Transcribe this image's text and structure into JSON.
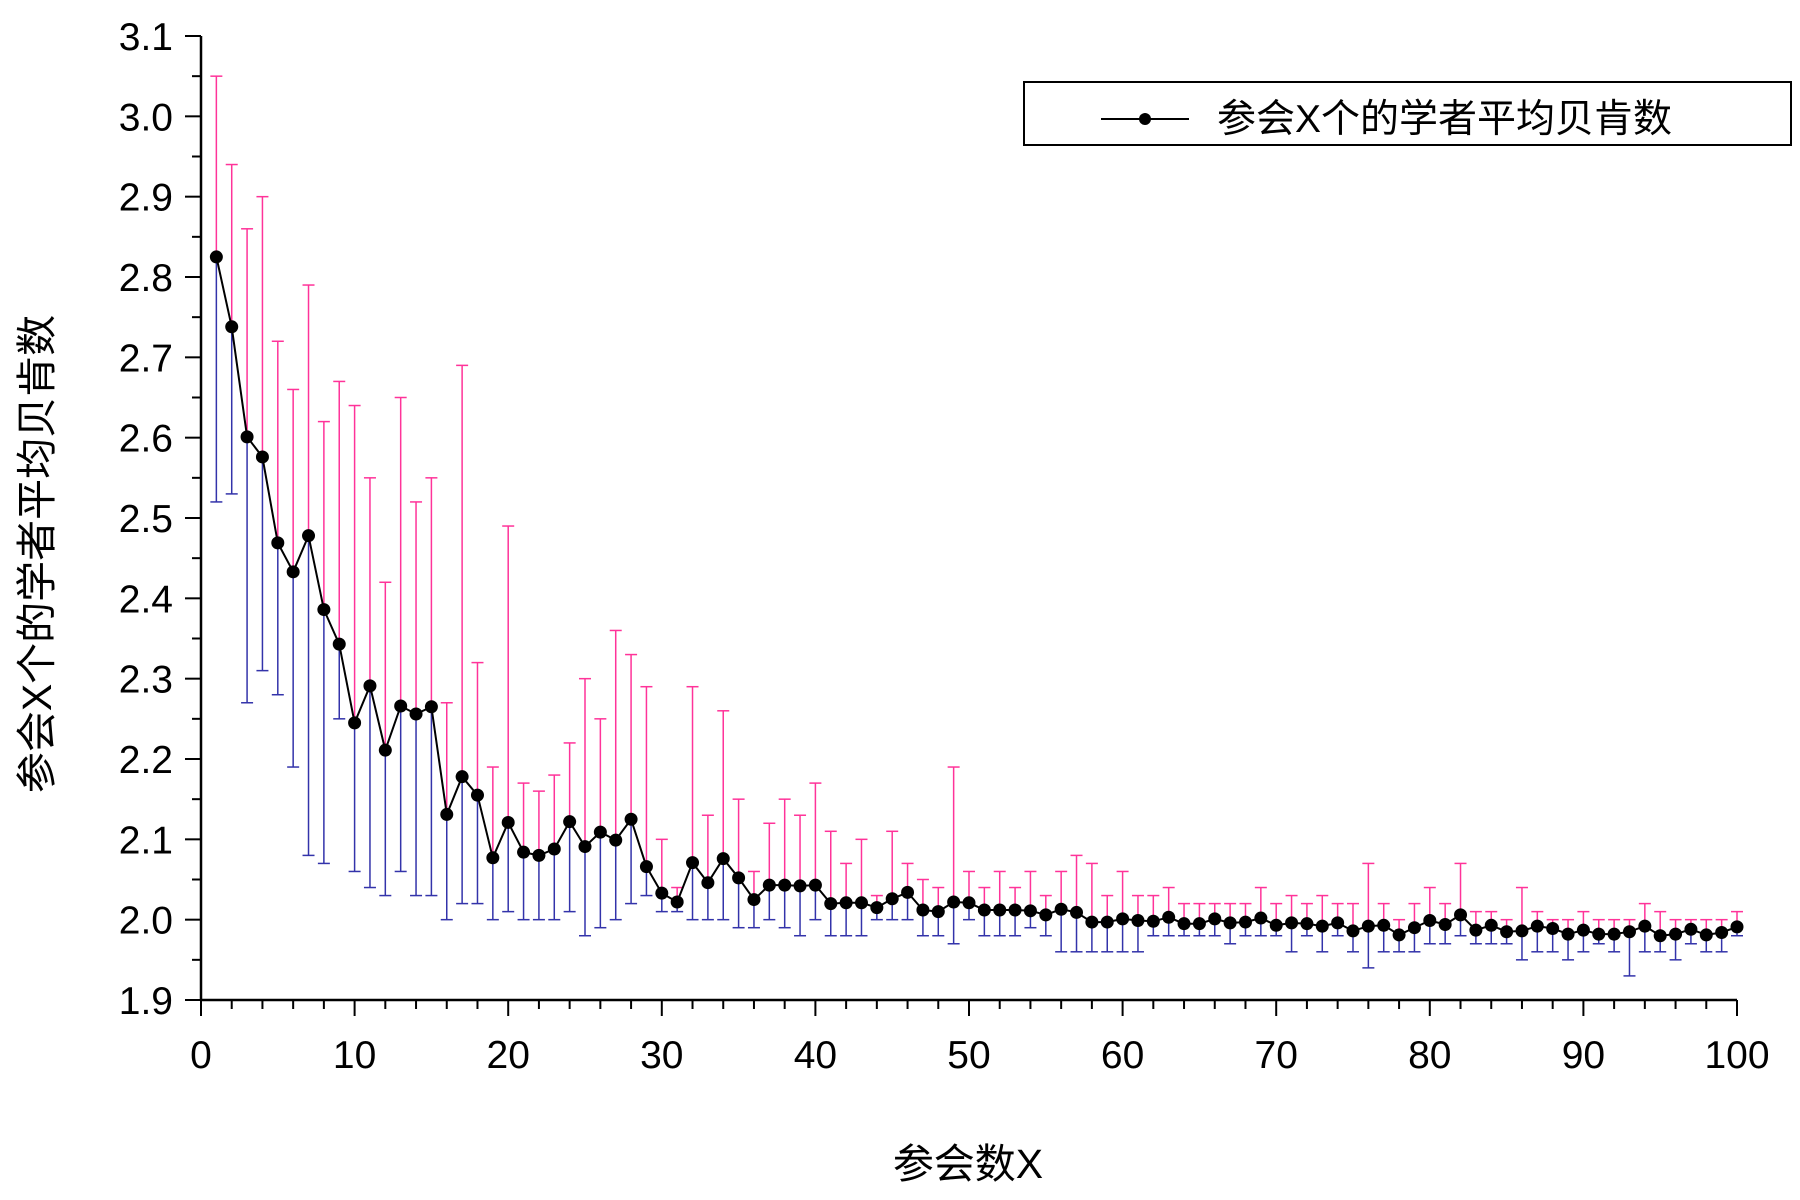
{
  "chart_data": {
    "type": "scatter",
    "xlabel": "参会数X",
    "ylabel": "参会X个的学者平均贝肯数",
    "xlim": [
      0,
      100
    ],
    "ylim": [
      1.9,
      3.1
    ],
    "xticks": [
      0,
      10,
      20,
      30,
      40,
      50,
      60,
      70,
      80,
      90,
      100
    ],
    "yticks": [
      1.9,
      2.0,
      2.1,
      2.2,
      2.3,
      2.4,
      2.5,
      2.6,
      2.7,
      2.8,
      2.9,
      3.0,
      3.1
    ],
    "x_minor_step": 2,
    "y_minor_step": 0.05,
    "legend_position": "top-right",
    "grid": false,
    "colors": {
      "line": "#000000",
      "marker": "#000000",
      "error_upper": "#ff3399",
      "error_lower": "#3333aa"
    },
    "series": [
      {
        "name": "参会X个的学者平均贝肯数",
        "x": [
          1,
          2,
          3,
          4,
          5,
          6,
          7,
          8,
          9,
          10,
          11,
          12,
          13,
          14,
          15,
          16,
          17,
          18,
          19,
          20,
          21,
          22,
          23,
          24,
          25,
          26,
          27,
          28,
          29,
          30,
          31,
          32,
          33,
          34,
          35,
          36,
          37,
          38,
          39,
          40,
          41,
          42,
          43,
          44,
          45,
          46,
          47,
          48,
          49,
          50,
          51,
          52,
          53,
          54,
          55,
          56,
          57,
          58,
          59,
          60,
          61,
          62,
          63,
          64,
          65,
          66,
          67,
          68,
          69,
          70,
          71,
          72,
          73,
          74,
          75,
          76,
          77,
          78,
          79,
          80,
          81,
          82,
          83,
          84,
          85,
          86,
          87,
          88,
          89,
          90,
          91,
          92,
          93,
          94,
          95,
          96,
          97,
          98,
          99,
          100
        ],
        "y": [
          2.825,
          2.738,
          2.601,
          2.576,
          2.469,
          2.433,
          2.478,
          2.386,
          2.343,
          2.245,
          2.291,
          2.211,
          2.266,
          2.256,
          2.265,
          2.131,
          2.178,
          2.155,
          2.077,
          2.121,
          2.084,
          2.08,
          2.088,
          2.122,
          2.091,
          2.109,
          2.099,
          2.125,
          2.066,
          2.033,
          2.022,
          2.071,
          2.046,
          2.076,
          2.052,
          2.025,
          2.043,
          2.043,
          2.042,
          2.043,
          2.02,
          2.021,
          2.021,
          2.015,
          2.026,
          2.034,
          2.012,
          2.01,
          2.022,
          2.021,
          2.012,
          2.012,
          2.012,
          2.011,
          2.006,
          2.013,
          2.009,
          1.997,
          1.997,
          2.001,
          1.999,
          1.998,
          2.003,
          1.995,
          1.995,
          2.001,
          1.996,
          1.997,
          2.002,
          1.993,
          1.996,
          1.995,
          1.992,
          1.996,
          1.986,
          1.992,
          1.993,
          1.981,
          1.99,
          1.999,
          1.994,
          2.006,
          1.987,
          1.993,
          1.985,
          1.986,
          1.992,
          1.989,
          1.982,
          1.987,
          1.982,
          1.982,
          1.985,
          1.992,
          1.98,
          1.982,
          1.988,
          1.981,
          1.984,
          1.991
        ],
        "err_upper": [
          3.05,
          2.94,
          2.86,
          2.9,
          2.72,
          2.66,
          2.79,
          2.62,
          2.67,
          2.64,
          2.55,
          2.42,
          2.65,
          2.52,
          2.55,
          2.27,
          2.69,
          2.32,
          2.19,
          2.49,
          2.17,
          2.16,
          2.18,
          2.22,
          2.3,
          2.25,
          2.36,
          2.33,
          2.29,
          2.1,
          2.04,
          2.29,
          2.13,
          2.26,
          2.15,
          2.06,
          2.12,
          2.15,
          2.13,
          2.17,
          2.11,
          2.07,
          2.1,
          2.03,
          2.11,
          2.07,
          2.05,
          2.04,
          2.19,
          2.06,
          2.04,
          2.06,
          2.04,
          2.06,
          2.03,
          2.06,
          2.08,
          2.07,
          2.03,
          2.06,
          2.03,
          2.03,
          2.04,
          2.02,
          2.02,
          2.02,
          2.02,
          2.02,
          2.04,
          2.02,
          2.03,
          2.02,
          2.03,
          2.02,
          2.02,
          2.07,
          2.02,
          2.0,
          2.02,
          2.04,
          2.02,
          2.07,
          2.01,
          2.01,
          2.0,
          2.04,
          2.01,
          2.0,
          2.0,
          2.01,
          2.0,
          2.0,
          2.0,
          2.02,
          2.01,
          2.0,
          2.0,
          2.0,
          2.0,
          2.01
        ],
        "err_lower": [
          2.52,
          2.53,
          2.27,
          2.31,
          2.28,
          2.19,
          2.08,
          2.07,
          2.25,
          2.06,
          2.04,
          2.03,
          2.06,
          2.03,
          2.03,
          2.0,
          2.02,
          2.02,
          2.0,
          2.01,
          2.0,
          2.0,
          2.0,
          2.01,
          1.98,
          1.99,
          2.0,
          2.02,
          2.03,
          2.01,
          2.01,
          2.0,
          2.0,
          2.0,
          1.99,
          1.99,
          2.0,
          1.99,
          1.98,
          2.0,
          1.98,
          1.98,
          1.98,
          2.0,
          2.0,
          2.0,
          1.98,
          1.98,
          1.97,
          2.0,
          1.98,
          1.98,
          1.98,
          1.99,
          1.98,
          1.96,
          1.96,
          1.96,
          1.96,
          1.96,
          1.96,
          1.98,
          1.98,
          1.98,
          1.98,
          1.98,
          1.97,
          1.98,
          1.98,
          1.98,
          1.96,
          1.98,
          1.96,
          1.98,
          1.96,
          1.94,
          1.96,
          1.96,
          1.96,
          1.97,
          1.97,
          1.98,
          1.97,
          1.97,
          1.97,
          1.95,
          1.96,
          1.96,
          1.95,
          1.96,
          1.97,
          1.96,
          1.93,
          1.96,
          1.96,
          1.95,
          1.97,
          1.96,
          1.96,
          1.98
        ]
      }
    ]
  }
}
